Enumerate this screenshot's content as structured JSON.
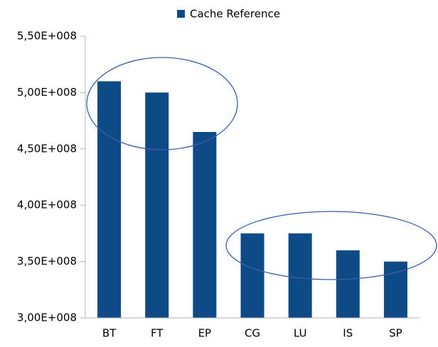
{
  "chart_data": {
    "type": "bar",
    "categories": [
      "BT",
      "FT",
      "EP",
      "CG",
      "LU",
      "IS",
      "SP"
    ],
    "series": [
      {
        "name": "Cache Reference",
        "color": "#0e4a86",
        "values": [
          510000000,
          500000000,
          465000000,
          375000000,
          375000000,
          360000000,
          350000000
        ]
      }
    ],
    "ylim": [
      300000000,
      550000000
    ],
    "yticks": [
      {
        "value": 300000000,
        "label": "3,00E+008"
      },
      {
        "value": 350000000,
        "label": "3,50E+008"
      },
      {
        "value": 400000000,
        "label": "4,00E+008"
      },
      {
        "value": 450000000,
        "label": "4,50E+008"
      },
      {
        "value": 500000000,
        "label": "5,00E+008"
      },
      {
        "value": 550000000,
        "label": "5,50E+008"
      }
    ],
    "grid": false,
    "legend": "top"
  }
}
